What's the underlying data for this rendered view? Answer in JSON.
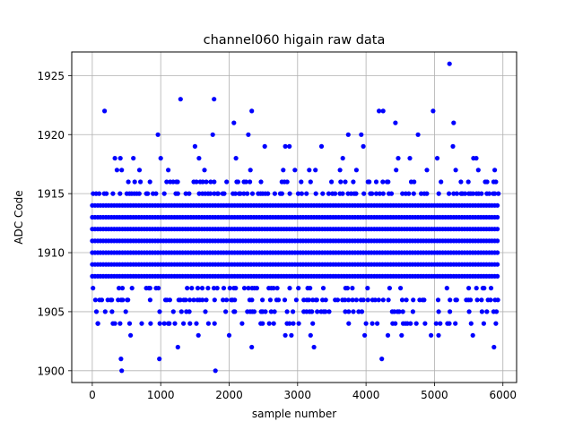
{
  "chart_data": {
    "type": "scatter",
    "title": "channel060 higain raw data",
    "xlabel": "sample number",
    "ylabel": "ADC Code",
    "xlim": [
      -300,
      6200
    ],
    "ylim": [
      1899,
      1927
    ],
    "xticks": [
      0,
      1000,
      2000,
      3000,
      4000,
      5000,
      6000
    ],
    "yticks": [
      1900,
      1905,
      1910,
      1915,
      1920,
      1925
    ],
    "grid": true,
    "marker_color": "#0000ff",
    "sample_range": [
      0,
      5920
    ],
    "series": [
      {
        "band_levels": [
          1908,
          1909,
          1910,
          1911,
          1912,
          1913,
          1914
        ],
        "mid_levels": [
          1906,
          1915
        ],
        "sparse_levels": [
          1904,
          1905,
          1907,
          1916
        ],
        "outliers": [
          {
            "x": 180,
            "y": 1922
          },
          {
            "x": 1290,
            "y": 1923
          },
          {
            "x": 1780,
            "y": 1923
          },
          {
            "x": 5220,
            "y": 1926
          },
          {
            "x": 420,
            "y": 1901
          },
          {
            "x": 430,
            "y": 1900
          },
          {
            "x": 980,
            "y": 1901
          },
          {
            "x": 1800,
            "y": 1900
          },
          {
            "x": 4230,
            "y": 1901
          },
          {
            "x": 5870,
            "y": 1902
          },
          {
            "x": 960,
            "y": 1920
          },
          {
            "x": 1760,
            "y": 1920
          },
          {
            "x": 2070,
            "y": 1921
          },
          {
            "x": 2280,
            "y": 1920
          },
          {
            "x": 2330,
            "y": 1922
          },
          {
            "x": 3740,
            "y": 1920
          },
          {
            "x": 3930,
            "y": 1920
          },
          {
            "x": 4190,
            "y": 1922
          },
          {
            "x": 4250,
            "y": 1922
          },
          {
            "x": 4430,
            "y": 1921
          },
          {
            "x": 4760,
            "y": 1920
          },
          {
            "x": 4980,
            "y": 1922
          },
          {
            "x": 5280,
            "y": 1921
          },
          {
            "x": 1250,
            "y": 1902
          },
          {
            "x": 2330,
            "y": 1902
          },
          {
            "x": 3240,
            "y": 1902
          },
          {
            "x": 330,
            "y": 1918
          },
          {
            "x": 410,
            "y": 1918
          },
          {
            "x": 600,
            "y": 1918
          },
          {
            "x": 1000,
            "y": 1918
          },
          {
            "x": 1500,
            "y": 1919
          },
          {
            "x": 1560,
            "y": 1918
          },
          {
            "x": 2100,
            "y": 1918
          },
          {
            "x": 2520,
            "y": 1919
          },
          {
            "x": 2820,
            "y": 1919
          },
          {
            "x": 2880,
            "y": 1919
          },
          {
            "x": 3350,
            "y": 1919
          },
          {
            "x": 3660,
            "y": 1918
          },
          {
            "x": 3960,
            "y": 1919
          },
          {
            "x": 4470,
            "y": 1918
          },
          {
            "x": 4640,
            "y": 1918
          },
          {
            "x": 5040,
            "y": 1918
          },
          {
            "x": 5270,
            "y": 1919
          },
          {
            "x": 5570,
            "y": 1918
          },
          {
            "x": 5610,
            "y": 1918
          },
          {
            "x": 360,
            "y": 1917
          },
          {
            "x": 430,
            "y": 1917
          },
          {
            "x": 690,
            "y": 1917
          },
          {
            "x": 1110,
            "y": 1917
          },
          {
            "x": 1640,
            "y": 1917
          },
          {
            "x": 2310,
            "y": 1917
          },
          {
            "x": 2790,
            "y": 1917
          },
          {
            "x": 2960,
            "y": 1917
          },
          {
            "x": 3170,
            "y": 1917
          },
          {
            "x": 3260,
            "y": 1917
          },
          {
            "x": 3620,
            "y": 1917
          },
          {
            "x": 3860,
            "y": 1917
          },
          {
            "x": 4440,
            "y": 1917
          },
          {
            "x": 4890,
            "y": 1917
          },
          {
            "x": 5310,
            "y": 1917
          },
          {
            "x": 5640,
            "y": 1917
          },
          {
            "x": 5880,
            "y": 1917
          },
          {
            "x": 80,
            "y": 1904
          },
          {
            "x": 560,
            "y": 1903
          },
          {
            "x": 2000,
            "y": 1903
          },
          {
            "x": 2820,
            "y": 1903
          },
          {
            "x": 2910,
            "y": 1903
          },
          {
            "x": 3980,
            "y": 1903
          },
          {
            "x": 4320,
            "y": 1903
          },
          {
            "x": 4520,
            "y": 1903
          },
          {
            "x": 4950,
            "y": 1903
          },
          {
            "x": 5560,
            "y": 1903
          },
          {
            "x": 1550,
            "y": 1903
          },
          {
            "x": 3190,
            "y": 1903
          },
          {
            "x": 5060,
            "y": 1903
          }
        ]
      }
    ]
  }
}
